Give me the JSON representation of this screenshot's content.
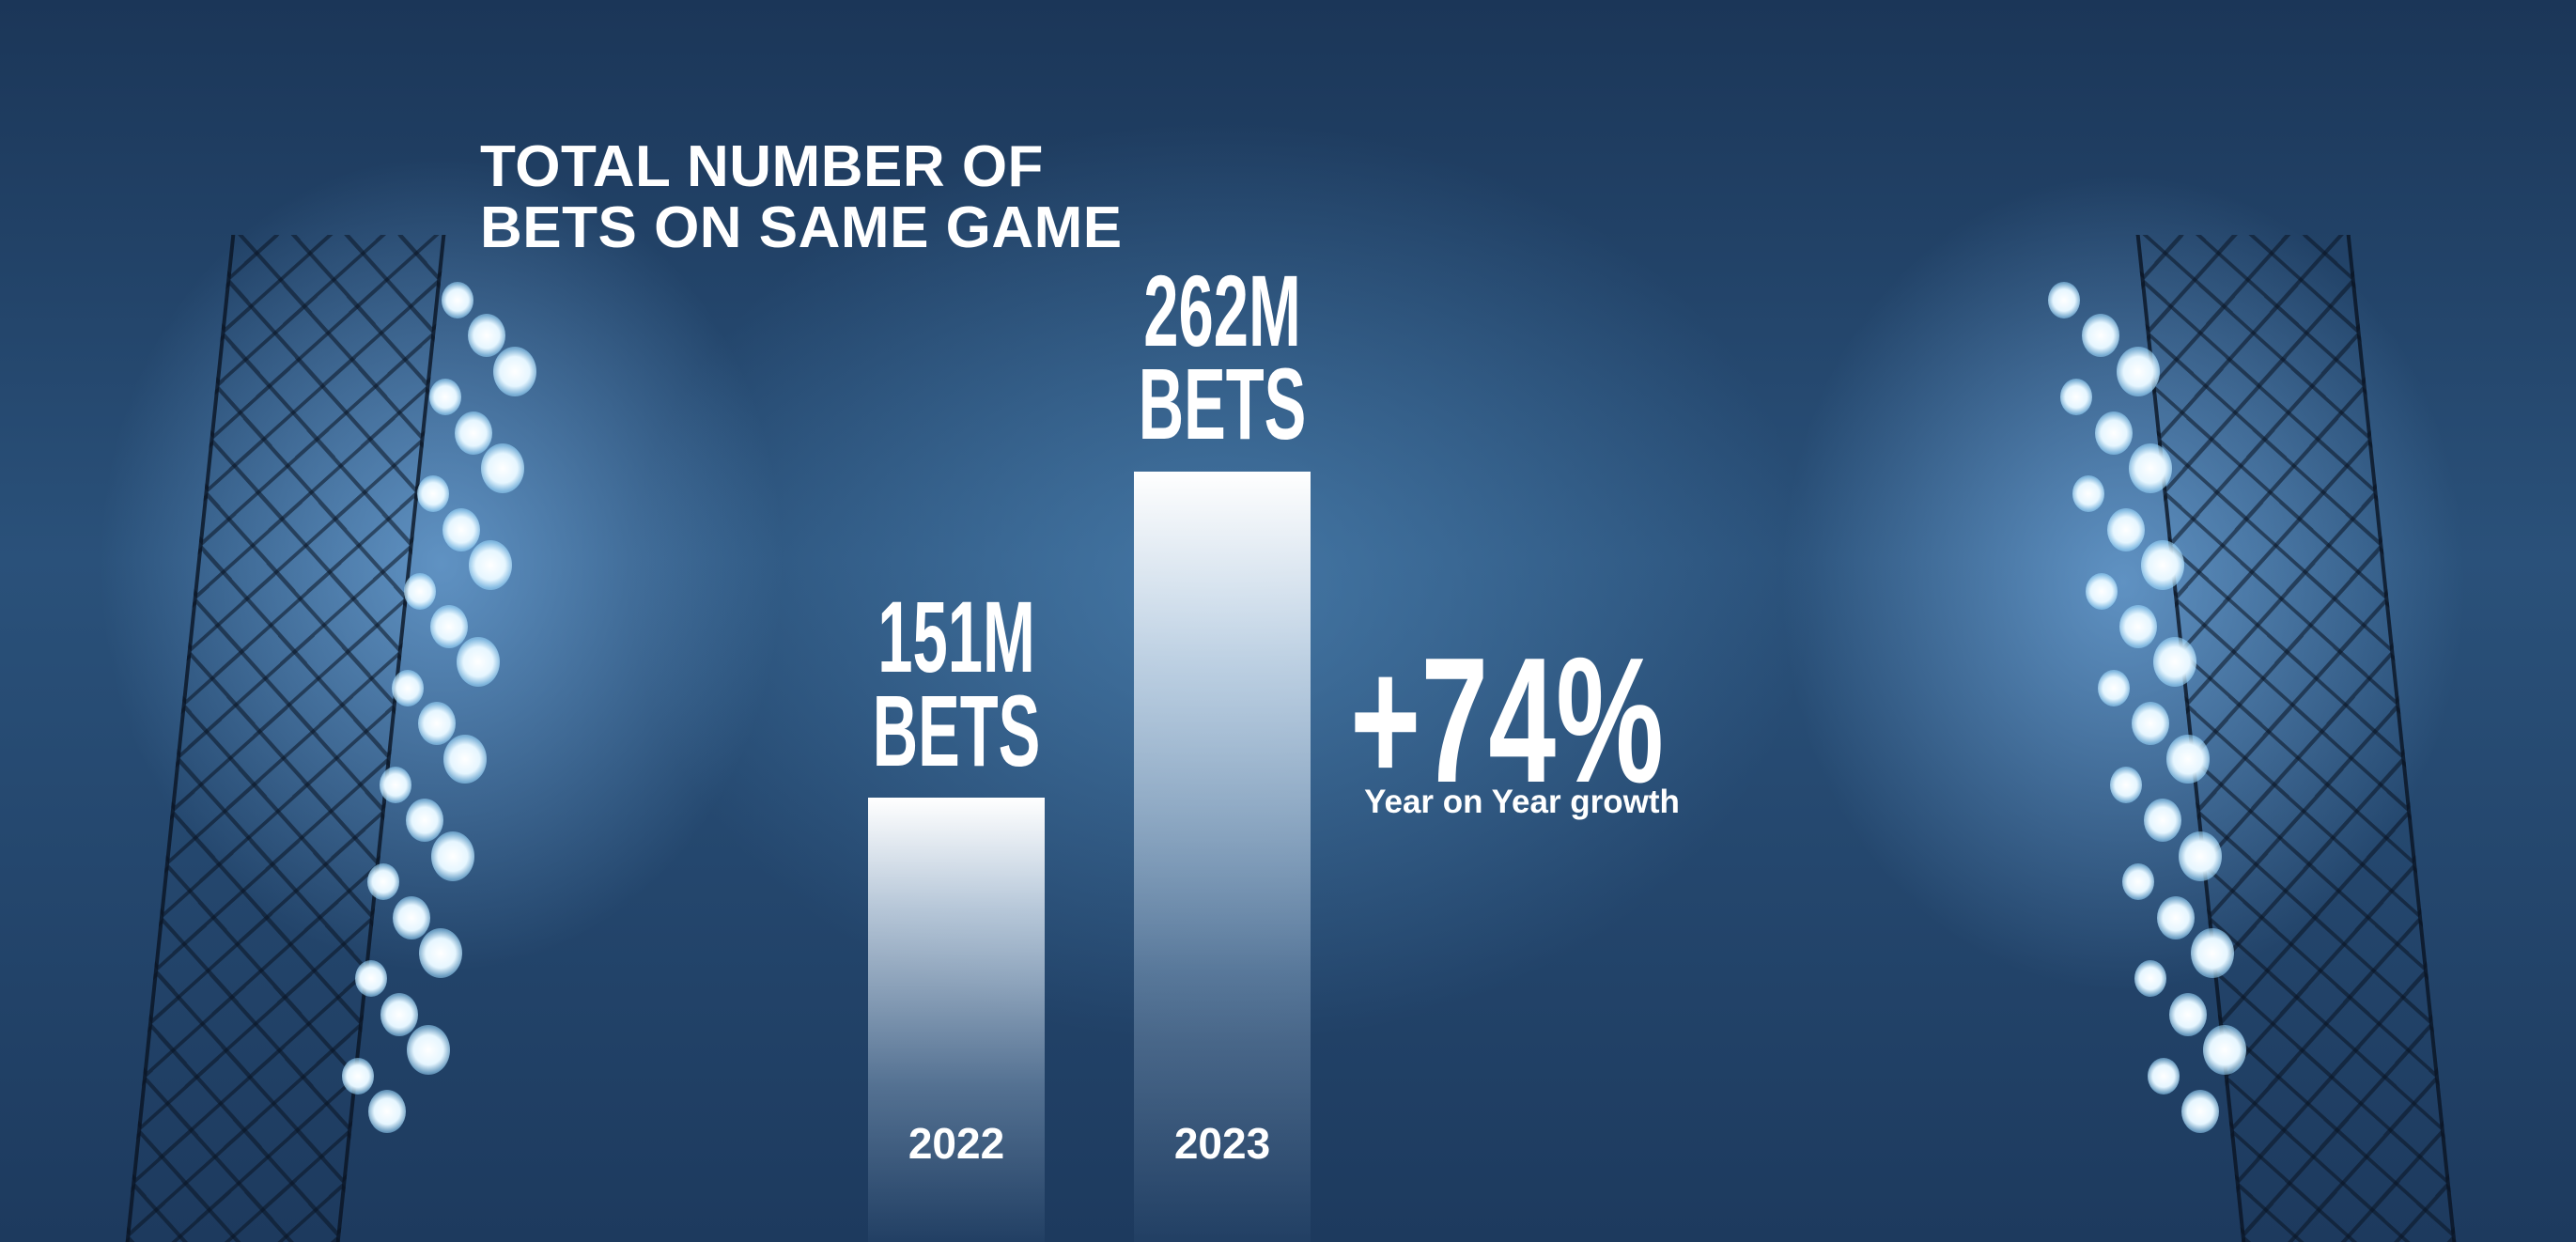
{
  "chart_data": {
    "type": "bar",
    "title": "TOTAL NUMBER OF BETS ON SAME GAME",
    "categories": [
      "2022",
      "2023"
    ],
    "values": [
      151000000,
      262000000
    ],
    "value_labels": [
      "151M BETS",
      "262M BETS"
    ],
    "annotation": "+74%",
    "annotation_caption": "Year on Year growth",
    "color": "#ffffff"
  }
}
